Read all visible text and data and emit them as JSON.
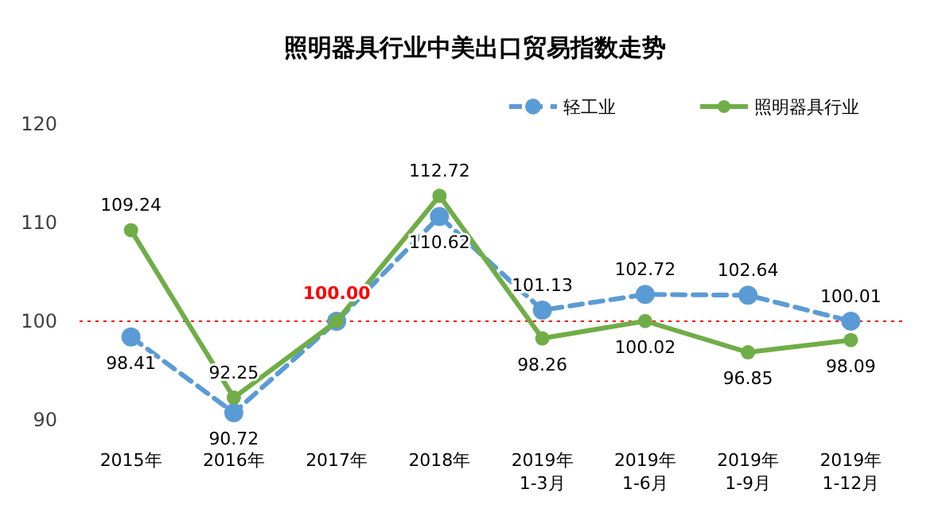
{
  "chart_data": {
    "type": "line",
    "title": "照明器具行业中美出口贸易指数走势",
    "categories": [
      "2015年",
      "2016年",
      "2017年",
      "2018年",
      "2019年\n1-3月",
      "2019年\n1-6月",
      "2019年\n1-9月",
      "2019年\n1-12月"
    ],
    "series": [
      {
        "name": "轻工业",
        "color": "#5b9bd5",
        "line_style": "dashed",
        "values": [
          98.41,
          90.72,
          100.0,
          110.62,
          101.13,
          102.72,
          102.64,
          100.01
        ],
        "value_labels": [
          "98.41",
          "90.72",
          null,
          "110.62",
          "101.13",
          "102.72",
          "102.64",
          "100.01"
        ]
      },
      {
        "name": "照明器具行业",
        "color": "#70ad47",
        "line_style": "solid",
        "values": [
          109.24,
          92.25,
          100.0,
          112.72,
          98.26,
          100.02,
          96.85,
          98.09
        ],
        "value_labels": [
          "109.24",
          "92.25",
          null,
          "112.72",
          "98.26",
          "100.02",
          "96.85",
          "98.09"
        ]
      }
    ],
    "annotations": [
      {
        "text": "100.00",
        "x": "2017年",
        "y": 100
      }
    ],
    "ref_lines": [
      {
        "axis": "y",
        "value": 100,
        "color": "#ff0000",
        "line_style": "dotted"
      }
    ],
    "ylim": [
      90,
      120
    ],
    "yticks": [
      90,
      100,
      110,
      120
    ],
    "marker": "circle",
    "legend": "top right",
    "grid": false
  }
}
